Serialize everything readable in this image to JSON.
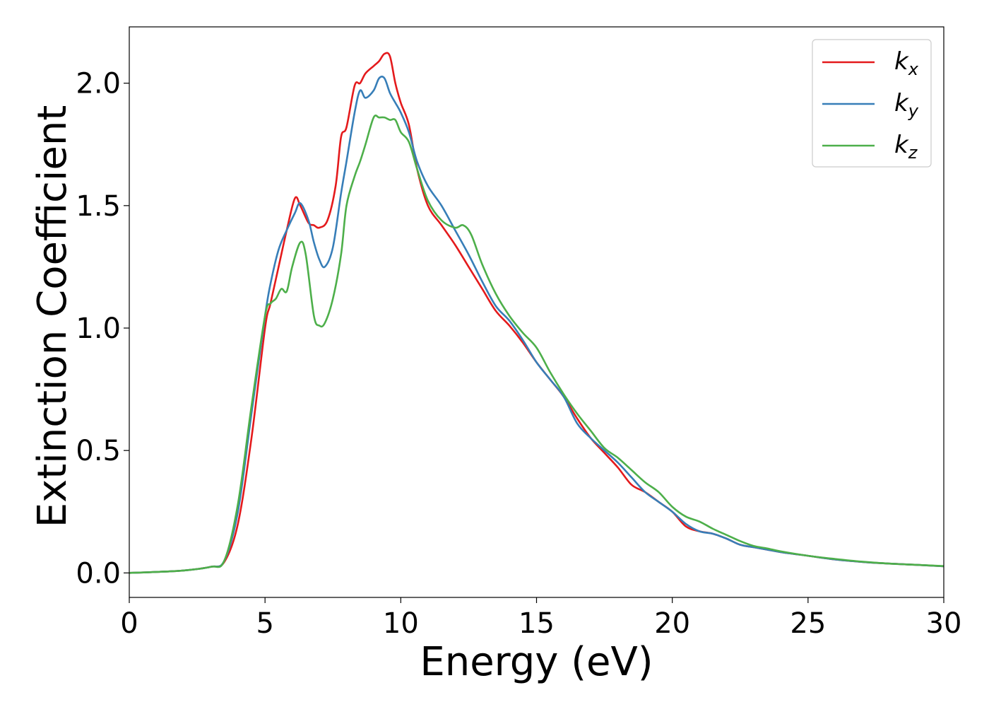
{
  "chart_data": {
    "type": "line",
    "xlabel": "Energy (eV)",
    "ylabel": "Extinction Coefficient",
    "xlim": [
      0,
      30
    ],
    "ylim": [
      -0.1,
      2.23
    ],
    "xticks": [
      0,
      5,
      10,
      15,
      20,
      25,
      30
    ],
    "xtick_labels": [
      "0",
      "5",
      "10",
      "15",
      "20",
      "25",
      "30"
    ],
    "yticks": [
      0.0,
      0.5,
      1.0,
      1.5,
      2.0
    ],
    "ytick_labels": [
      "0.0",
      "0.5",
      "1.0",
      "1.5",
      "2.0"
    ],
    "grid": false,
    "legend_position": "top-right",
    "series": [
      {
        "name": "k_x",
        "legend_base": "k",
        "legend_sub": "x",
        "color": "#e41a1c",
        "x": [
          0,
          1,
          2,
          3,
          3.5,
          4,
          4.5,
          5,
          5.2,
          5.5,
          5.8,
          6.1,
          6.3,
          6.6,
          6.8,
          7.0,
          7.3,
          7.6,
          7.8,
          8.0,
          8.3,
          8.5,
          8.7,
          9.0,
          9.2,
          9.4,
          9.6,
          9.8,
          10.0,
          10.3,
          10.6,
          11.0,
          11.5,
          12.0,
          12.5,
          13.0,
          13.5,
          14.0,
          14.5,
          15.0,
          15.5,
          16.0,
          16.5,
          17.0,
          17.5,
          18.0,
          18.5,
          19.0,
          19.5,
          20.0,
          20.5,
          21.0,
          21.5,
          22.0,
          22.5,
          23.0,
          23.5,
          24.0,
          25.0,
          26.0,
          27.0,
          28.0,
          29.0,
          30.0
        ],
        "y": [
          0.0,
          0.004,
          0.01,
          0.025,
          0.045,
          0.2,
          0.55,
          1.0,
          1.1,
          1.25,
          1.4,
          1.53,
          1.5,
          1.43,
          1.42,
          1.41,
          1.44,
          1.58,
          1.78,
          1.82,
          1.99,
          2.0,
          2.04,
          2.07,
          2.09,
          2.12,
          2.11,
          2.0,
          1.92,
          1.83,
          1.65,
          1.5,
          1.42,
          1.34,
          1.25,
          1.16,
          1.07,
          1.01,
          0.94,
          0.86,
          0.79,
          0.72,
          0.63,
          0.55,
          0.49,
          0.43,
          0.36,
          0.33,
          0.29,
          0.25,
          0.19,
          0.17,
          0.16,
          0.14,
          0.115,
          0.105,
          0.095,
          0.085,
          0.07,
          0.055,
          0.045,
          0.038,
          0.033,
          0.027
        ]
      },
      {
        "name": "k_y",
        "legend_base": "k",
        "legend_sub": "y",
        "color": "#377eb8",
        "x": [
          0,
          1,
          2,
          3,
          3.5,
          4,
          4.5,
          5,
          5.2,
          5.5,
          5.8,
          6.1,
          6.3,
          6.6,
          6.8,
          7.0,
          7.2,
          7.5,
          7.8,
          8.0,
          8.3,
          8.5,
          8.7,
          9.0,
          9.2,
          9.4,
          9.6,
          9.8,
          10.0,
          10.3,
          10.6,
          11.0,
          11.5,
          12.0,
          12.5,
          13.0,
          13.5,
          14.0,
          14.5,
          15.0,
          15.5,
          16.0,
          16.5,
          17.0,
          17.5,
          18.0,
          18.5,
          19.0,
          19.5,
          20.0,
          20.5,
          21.0,
          21.5,
          22.0,
          22.5,
          23.0,
          23.5,
          24.0,
          25.0,
          26.0,
          27.0,
          28.0,
          29.0,
          30.0
        ],
        "y": [
          0.0,
          0.004,
          0.01,
          0.025,
          0.05,
          0.25,
          0.65,
          1.05,
          1.18,
          1.32,
          1.4,
          1.47,
          1.51,
          1.44,
          1.35,
          1.28,
          1.25,
          1.33,
          1.55,
          1.68,
          1.88,
          1.97,
          1.94,
          1.97,
          2.02,
          2.02,
          1.96,
          1.92,
          1.88,
          1.8,
          1.68,
          1.58,
          1.5,
          1.4,
          1.3,
          1.19,
          1.09,
          1.03,
          0.95,
          0.86,
          0.79,
          0.72,
          0.61,
          0.55,
          0.5,
          0.45,
          0.39,
          0.33,
          0.29,
          0.25,
          0.2,
          0.17,
          0.16,
          0.14,
          0.115,
          0.105,
          0.095,
          0.085,
          0.07,
          0.055,
          0.045,
          0.038,
          0.033,
          0.027
        ]
      },
      {
        "name": "k_z",
        "legend_base": "k",
        "legend_sub": "z",
        "color": "#4daf4a",
        "x": [
          0,
          1,
          2,
          3,
          3.5,
          4,
          4.5,
          5,
          5.2,
          5.4,
          5.6,
          5.8,
          6.0,
          6.3,
          6.5,
          6.8,
          7.0,
          7.2,
          7.5,
          7.8,
          8.0,
          8.3,
          8.5,
          8.7,
          9.0,
          9.2,
          9.4,
          9.6,
          9.8,
          10.0,
          10.3,
          10.6,
          11.0,
          11.5,
          12.0,
          12.3,
          12.6,
          13.0,
          13.5,
          14.0,
          14.5,
          15.0,
          15.5,
          16.0,
          16.5,
          17.0,
          17.5,
          18.0,
          18.5,
          19.0,
          19.5,
          20.0,
          20.5,
          21.0,
          21.5,
          22.0,
          22.5,
          23.0,
          23.5,
          24.0,
          25.0,
          26.0,
          27.0,
          28.0,
          29.0,
          30.0
        ],
        "y": [
          0.0,
          0.004,
          0.01,
          0.025,
          0.05,
          0.28,
          0.68,
          1.05,
          1.1,
          1.12,
          1.16,
          1.15,
          1.25,
          1.35,
          1.3,
          1.05,
          1.01,
          1.02,
          1.12,
          1.3,
          1.5,
          1.62,
          1.68,
          1.75,
          1.86,
          1.86,
          1.86,
          1.85,
          1.85,
          1.8,
          1.76,
          1.65,
          1.52,
          1.44,
          1.41,
          1.42,
          1.38,
          1.26,
          1.14,
          1.05,
          0.98,
          0.92,
          0.82,
          0.73,
          0.65,
          0.58,
          0.51,
          0.47,
          0.42,
          0.37,
          0.33,
          0.27,
          0.23,
          0.21,
          0.18,
          0.155,
          0.13,
          0.11,
          0.1,
          0.088,
          0.07,
          0.057,
          0.046,
          0.038,
          0.033,
          0.028
        ]
      }
    ]
  }
}
